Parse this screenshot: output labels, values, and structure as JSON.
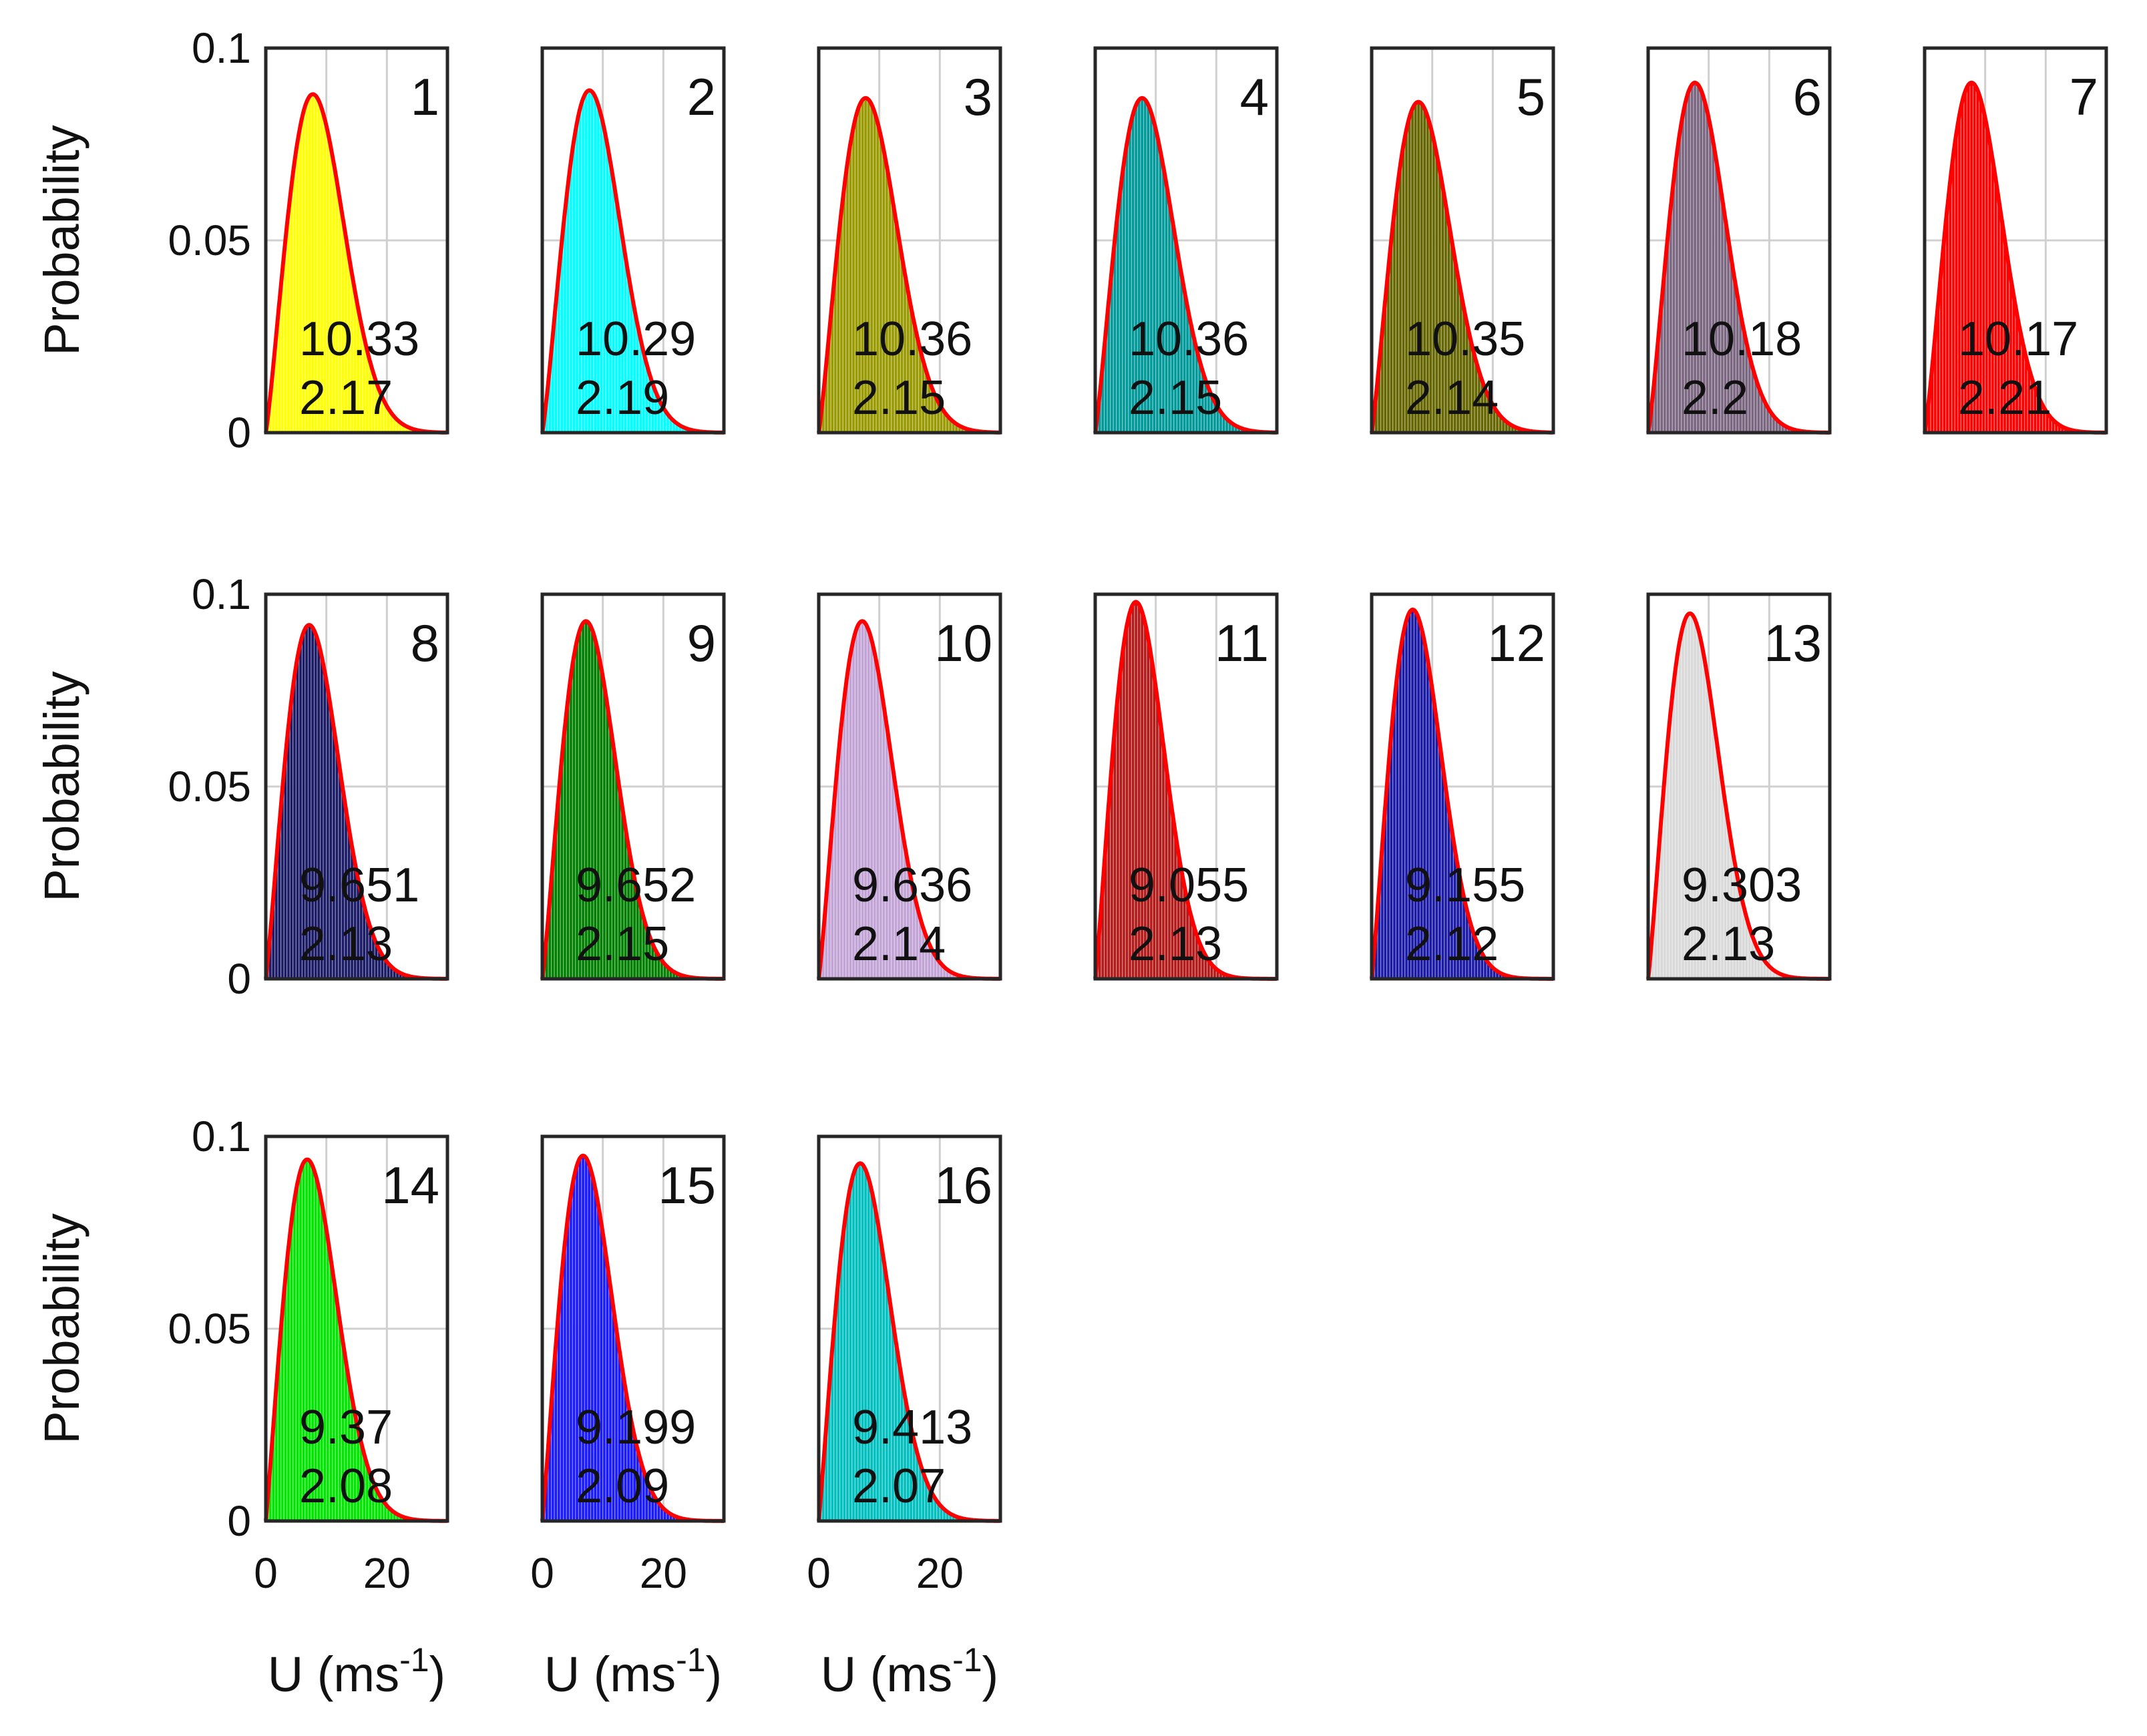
{
  "chart_data": {
    "type": "bar",
    "description_of_marks": "histogram bars with fitted Weibull pdf curve",
    "common": {
      "x_range": [
        0,
        30
      ],
      "ylim": [
        0,
        0.1
      ],
      "y_ticks": [
        "0",
        "0.05",
        "0.1"
      ],
      "x_ticks": [
        "0",
        "20"
      ],
      "ylabel": "Probability",
      "xlabel_base": "U (ms",
      "xlabel_sup": "-1",
      "xlabel_close": ")",
      "fit_color": "#ff0000"
    },
    "panels": [
      {
        "id": "1",
        "scale": "10.33",
        "shape": "2.17",
        "color": "#ffff00",
        "peak": 0.088
      },
      {
        "id": "2",
        "scale": "10.29",
        "shape": "2.19",
        "color": "#00ffff",
        "peak": 0.089
      },
      {
        "id": "3",
        "scale": "10.36",
        "shape": "2.15",
        "color": "#999900",
        "peak": 0.087
      },
      {
        "id": "4",
        "scale": "10.36",
        "shape": "2.15",
        "color": "#009999",
        "peak": 0.087
      },
      {
        "id": "5",
        "scale": "10.35",
        "shape": "2.14",
        "color": "#666600",
        "peak": 0.086
      },
      {
        "id": "6",
        "scale": "10.18",
        "shape": "2.2",
        "color": "#7a6680",
        "peak": 0.091
      },
      {
        "id": "7",
        "scale": "10.17",
        "shape": "2.21",
        "color": "#ff0000",
        "peak": 0.091
      },
      {
        "id": "8",
        "scale": "9.651",
        "shape": "2.13",
        "color": "#1a1a66",
        "peak": 0.092
      },
      {
        "id": "9",
        "scale": "9.652",
        "shape": "2.15",
        "color": "#008000",
        "peak": 0.093
      },
      {
        "id": "10",
        "scale": "9.636",
        "shape": "2.14",
        "color": "#c2a3d6",
        "peak": 0.093
      },
      {
        "id": "11",
        "scale": "9.055",
        "shape": "2.13",
        "color": "#b31a1a",
        "peak": 0.098
      },
      {
        "id": "12",
        "scale": "9.155",
        "shape": "2.12",
        "color": "#1a1aa6",
        "peak": 0.096
      },
      {
        "id": "13",
        "scale": "9.303",
        "shape": "2.13",
        "color": "#d9d9d9",
        "peak": 0.095
      },
      {
        "id": "14",
        "scale": "9.37",
        "shape": "2.08",
        "color": "#00e600",
        "peak": 0.094
      },
      {
        "id": "15",
        "scale": "9.199",
        "shape": "2.09",
        "color": "#1a1aff",
        "peak": 0.095
      },
      {
        "id": "16",
        "scale": "9.413",
        "shape": "2.07",
        "color": "#00bfbf",
        "peak": 0.093
      }
    ]
  }
}
